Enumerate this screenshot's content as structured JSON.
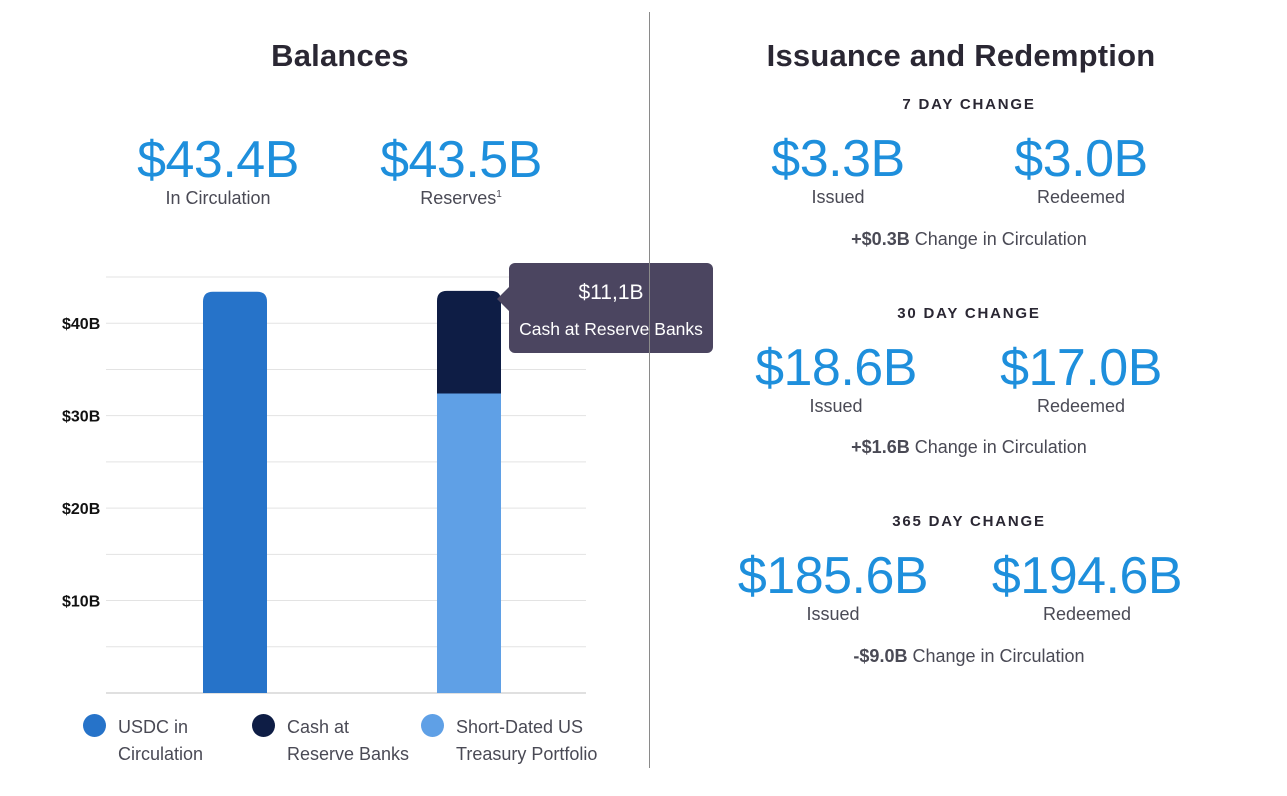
{
  "balances": {
    "title": "Balances",
    "in_circulation": {
      "value": "$43.4B",
      "label": "In Circulation"
    },
    "reserves": {
      "value": "$43.5B",
      "label": "Reserves",
      "footnote": "1"
    }
  },
  "chart_data": {
    "type": "bar",
    "stacked": true,
    "categories": [
      "USDC in Circulation",
      "Reserves"
    ],
    "series": [
      {
        "name": "USDC in Circulation",
        "values": [
          43.4,
          0
        ],
        "color": "#2673c9"
      },
      {
        "name": "Short-Dated US Treasury Portfolio",
        "values": [
          0,
          32.4
        ],
        "color": "#5fa0e6"
      },
      {
        "name": "Cash at Reserve Banks",
        "values": [
          0,
          11.1
        ],
        "color": "#0e1d45"
      }
    ],
    "ylim": [
      0,
      45
    ],
    "yticks": [
      10,
      20,
      30,
      40
    ],
    "ytick_labels": [
      "$10B",
      "$20B",
      "$30B",
      "$40B"
    ],
    "grid": true,
    "legend_position": "bottom",
    "tooltip": {
      "value": "$11,1B",
      "label": "Cash at Reserve Banks"
    }
  },
  "legend": [
    {
      "line1": "USDC in",
      "line2": "Circulation",
      "color": "#2673c9"
    },
    {
      "line1": "Cash at",
      "line2": "Reserve Banks",
      "color": "#0e1d45"
    },
    {
      "line1": "Short-Dated US",
      "line2": "Treasury Portfolio",
      "color": "#5fa0e6"
    }
  ],
  "issuance": {
    "title": "Issuance and Redemption",
    "periods": [
      {
        "label": "7 DAY CHANGE",
        "issued": "$3.3B",
        "redeemed": "$3.0B",
        "issued_label": "Issued",
        "redeemed_label": "Redeemed",
        "change_amount": "+$0.3B",
        "change_text": "Change in Circulation"
      },
      {
        "label": "30 DAY CHANGE",
        "issued": "$18.6B",
        "redeemed": "$17.0B",
        "issued_label": "Issued",
        "redeemed_label": "Redeemed",
        "change_amount": "+$1.6B",
        "change_text": "Change in Circulation"
      },
      {
        "label": "365 DAY CHANGE",
        "issued": "$185.6B",
        "redeemed": "$194.6B",
        "issued_label": "Issued",
        "redeemed_label": "Redeemed",
        "change_amount": "-$9.0B",
        "change_text": "Change in Circulation"
      }
    ]
  }
}
